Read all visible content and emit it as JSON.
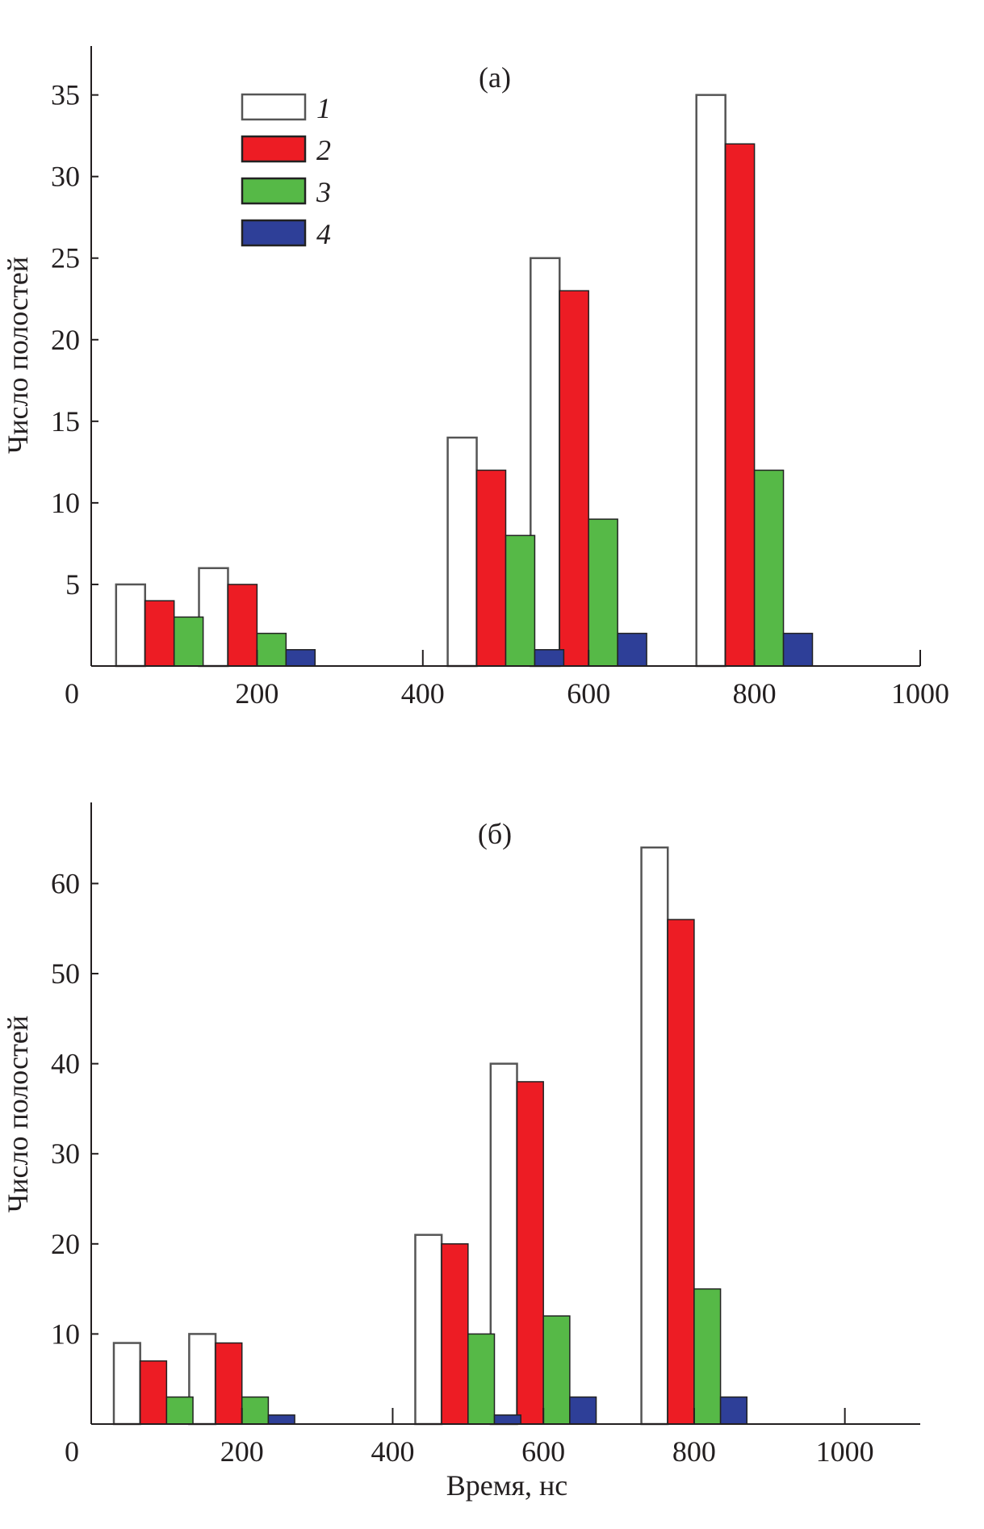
{
  "chart_data": [
    {
      "type": "bar",
      "panel_label": "(a)",
      "ylabel": "Число полостей",
      "xlabel": "",
      "xlim": [
        0,
        1000
      ],
      "ylim": [
        0,
        38
      ],
      "xticks": [
        0,
        200,
        400,
        600,
        800,
        1000
      ],
      "yticks": [
        5,
        10,
        15,
        20,
        25,
        30,
        35
      ],
      "grid": false,
      "legend": "top-left",
      "bar_width": 35,
      "x": [
        100,
        200,
        500,
        600,
        800
      ],
      "series": [
        {
          "name": "1",
          "color": "#ffffff",
          "values": [
            5,
            6,
            14,
            25,
            35
          ]
        },
        {
          "name": "2",
          "color": "#ed1c24",
          "values": [
            4,
            5,
            12,
            23,
            32
          ]
        },
        {
          "name": "3",
          "color": "#56b947",
          "values": [
            3,
            2,
            8,
            9,
            12
          ]
        },
        {
          "name": "4",
          "color": "#2e3f98",
          "values": [
            0,
            1,
            1,
            2,
            2
          ]
        }
      ]
    },
    {
      "type": "bar",
      "panel_label": "(б)",
      "ylabel": "Число полостей",
      "xlabel": "Время, нс",
      "xlim": [
        0,
        1100
      ],
      "ylim": [
        0,
        69
      ],
      "xticks": [
        0,
        200,
        400,
        600,
        800,
        1000
      ],
      "yticks": [
        10,
        20,
        30,
        40,
        50,
        60
      ],
      "grid": false,
      "bar_width": 35,
      "x": [
        100,
        200,
        500,
        600,
        800
      ],
      "series": [
        {
          "name": "1",
          "color": "#ffffff",
          "values": [
            9,
            10,
            21,
            40,
            64
          ]
        },
        {
          "name": "2",
          "color": "#ed1c24",
          "values": [
            7,
            9,
            20,
            38,
            56
          ]
        },
        {
          "name": "3",
          "color": "#56b947",
          "values": [
            3,
            3,
            10,
            12,
            15
          ]
        },
        {
          "name": "4",
          "color": "#2e3f98",
          "values": [
            0,
            1,
            1,
            3,
            3
          ]
        }
      ]
    }
  ]
}
